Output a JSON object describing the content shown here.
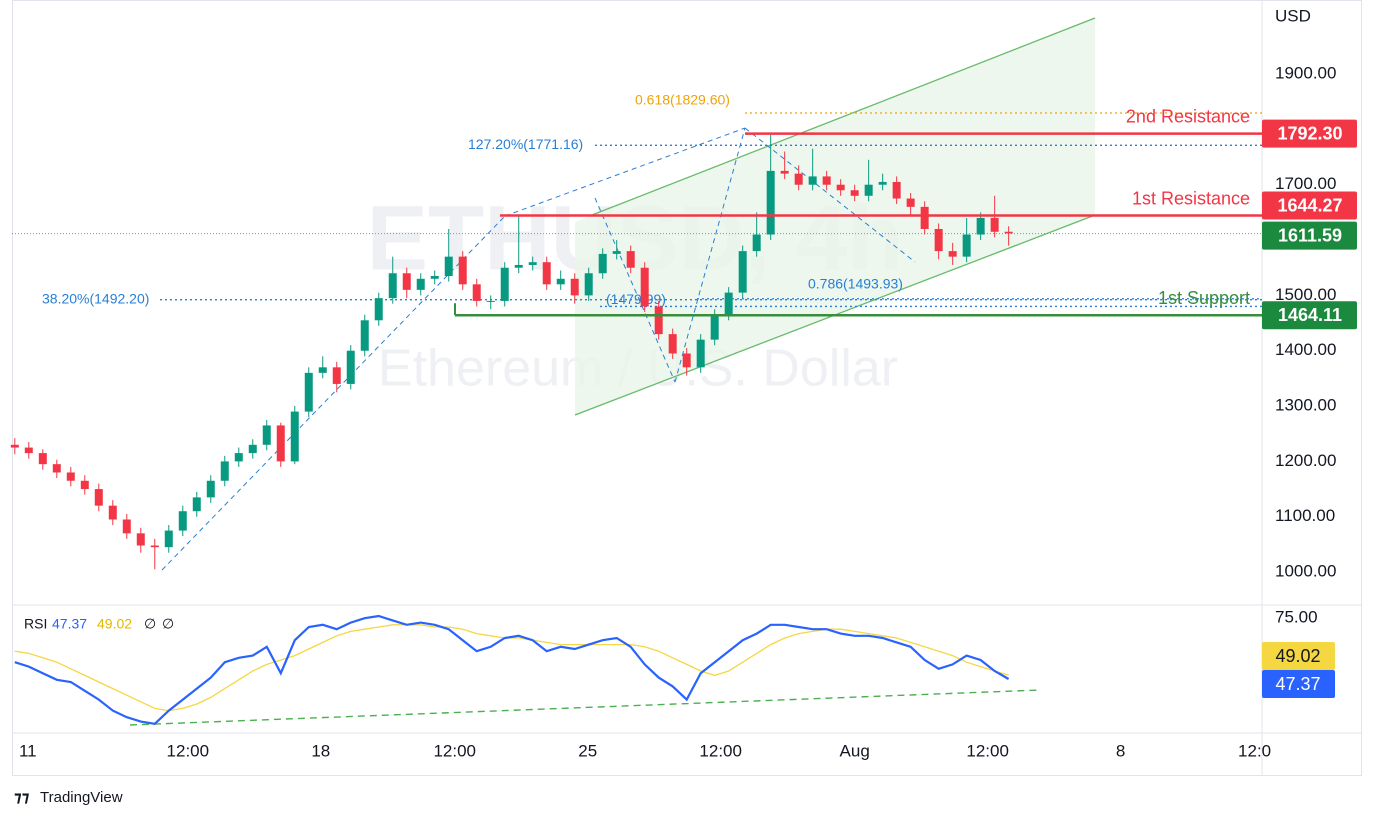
{
  "watermark_symbol": "ETHUSD, 4h",
  "watermark_description": "Ethereum / U.S. Dollar",
  "brand": "TradingView",
  "chart_data": [
    {
      "type": "candlestick",
      "y_axis_label": "USD",
      "up_color": "#089981",
      "down_color": "#f23645",
      "xlim": [
        -0.2,
        89.1
      ],
      "ylim": [
        940.5,
        2033.8
      ],
      "yticks": [
        {
          "value": 1000,
          "label": "1000.00"
        },
        {
          "value": 1100,
          "label": "1100.00"
        },
        {
          "value": 1200,
          "label": "1200.00"
        },
        {
          "value": 1300,
          "label": "1300.00"
        },
        {
          "value": 1400,
          "label": "1400.00"
        },
        {
          "value": 1500,
          "label": "1500.00"
        },
        {
          "value": 1700,
          "label": "1700.00"
        },
        {
          "value": 1900,
          "label": "1900.00"
        }
      ],
      "open": [
        1230,
        1225,
        1215,
        1195,
        1180,
        1165,
        1150,
        1120,
        1095,
        1070,
        1048,
        1045,
        1075,
        1110,
        1135,
        1165,
        1200,
        1215,
        1230,
        1265,
        1200,
        1290,
        1360,
        1370,
        1340,
        1400,
        1455,
        1495,
        1540,
        1510,
        1530,
        1535,
        1570,
        1520,
        1490,
        1490,
        1550,
        1555,
        1560,
        1520,
        1530,
        1500,
        1540,
        1575,
        1580,
        1550,
        1480,
        1430,
        1395,
        1370,
        1420,
        1465,
        1505,
        1580,
        1610,
        1725,
        1720,
        1700,
        1715,
        1700,
        1690,
        1680,
        1700,
        1705,
        1675,
        1660,
        1620,
        1580,
        1570,
        1610,
        1640,
        1615
      ],
      "high": [
        1242,
        1235,
        1222,
        1203,
        1190,
        1175,
        1160,
        1130,
        1105,
        1080,
        1060,
        1085,
        1120,
        1145,
        1175,
        1210,
        1225,
        1240,
        1275,
        1270,
        1300,
        1370,
        1390,
        1380,
        1410,
        1465,
        1505,
        1570,
        1550,
        1540,
        1545,
        1620,
        1580,
        1530,
        1500,
        1560,
        1645,
        1570,
        1570,
        1545,
        1540,
        1550,
        1585,
        1600,
        1590,
        1560,
        1490,
        1440,
        1405,
        1430,
        1475,
        1515,
        1590,
        1650,
        1790,
        1760,
        1735,
        1765,
        1725,
        1710,
        1700,
        1745,
        1720,
        1715,
        1685,
        1670,
        1630,
        1595,
        1640,
        1650,
        1680,
        1625
      ],
      "low": [
        1213,
        1205,
        1185,
        1170,
        1155,
        1140,
        1110,
        1085,
        1060,
        1035,
        1005,
        1035,
        1065,
        1100,
        1125,
        1155,
        1190,
        1205,
        1220,
        1190,
        1195,
        1280,
        1350,
        1325,
        1330,
        1390,
        1445,
        1485,
        1495,
        1500,
        1520,
        1525,
        1510,
        1480,
        1475,
        1480,
        1540,
        1545,
        1510,
        1510,
        1485,
        1490,
        1530,
        1565,
        1540,
        1470,
        1420,
        1385,
        1355,
        1360,
        1410,
        1455,
        1495,
        1570,
        1600,
        1710,
        1690,
        1690,
        1690,
        1680,
        1670,
        1670,
        1690,
        1665,
        1645,
        1610,
        1565,
        1555,
        1560,
        1600,
        1605,
        1590
      ],
      "close": [
        1225,
        1215,
        1195,
        1180,
        1165,
        1150,
        1120,
        1095,
        1070,
        1048,
        1045,
        1075,
        1110,
        1135,
        1165,
        1200,
        1215,
        1230,
        1265,
        1200,
        1290,
        1360,
        1370,
        1340,
        1400,
        1455,
        1495,
        1540,
        1510,
        1530,
        1535,
        1570,
        1520,
        1490,
        1490,
        1550,
        1555,
        1560,
        1520,
        1530,
        1500,
        1540,
        1575,
        1580,
        1550,
        1480,
        1430,
        1395,
        1370,
        1420,
        1465,
        1505,
        1580,
        1610,
        1725,
        1720,
        1700,
        1715,
        1700,
        1690,
        1680,
        1700,
        1705,
        1675,
        1660,
        1620,
        1580,
        1570,
        1610,
        1640,
        1615,
        1612
      ],
      "levels": [
        {
          "name": "2nd Resistance",
          "price": {
            "value": 1792.3,
            "label": "1792.30"
          },
          "color": "#f23645"
        },
        {
          "name": "1st Resistance",
          "price": {
            "value": 1644.27,
            "label": "1644.27"
          },
          "color": "#f23645"
        },
        {
          "name": "1st Support",
          "price": {
            "value": 1464.11,
            "label": "1464.11"
          },
          "color": "#388e3c"
        }
      ],
      "last_price": {
        "value": 1611.59,
        "label": "1611.59",
        "color": "#1b8a3e"
      },
      "fib_levels": [
        {
          "label": "0.618(1829.60)",
          "value": 1829.6,
          "color": "#f0a30a"
        },
        {
          "label": "127.20%(1771.16)",
          "value": 1771.16,
          "color": "#2a7fd4"
        },
        {
          "label": "38.20%(1492.20)",
          "value": 1492.2,
          "color": "#2a7fd4"
        },
        {
          "label": "0.786(1493.93)",
          "value": 1493.93,
          "color": "#2a7fd4"
        },
        {
          "label": "(1479.99)",
          "value": 1479.99,
          "color": "#2a7fd4"
        }
      ]
    },
    {
      "type": "line",
      "indicator": "RSI",
      "legend_extras": [
        "∅",
        "∅"
      ],
      "xlim": [
        -0.2,
        89.1
      ],
      "ylim": [
        22.8,
        81.0
      ],
      "yticks": [
        {
          "value": 75,
          "label": "75.00"
        }
      ],
      "xticks": [
        {
          "value": 0.93,
          "label": "11"
        },
        {
          "value": 12.36,
          "label": "12:00"
        },
        {
          "value": 21.86,
          "label": "18"
        },
        {
          "value": 31.43,
          "label": "12:00"
        },
        {
          "value": 40.93,
          "label": "25"
        },
        {
          "value": 50.43,
          "label": "12:00"
        },
        {
          "value": 60,
          "label": "Aug"
        },
        {
          "value": 69.5,
          "label": "12:00"
        },
        {
          "value": 79,
          "label": "8"
        },
        {
          "value": 88.57,
          "label": "12:0"
        }
      ],
      "series": [
        {
          "name": "RSI",
          "color": "#2962ff",
          "label_text_color": "#ffffff",
          "values": [
            55,
            53,
            50,
            47,
            46,
            42,
            38,
            33,
            30,
            28,
            27,
            33,
            38,
            43,
            48,
            55,
            57,
            58,
            62,
            50,
            65,
            71,
            72,
            70,
            73,
            75,
            76,
            74,
            72,
            73,
            72,
            70,
            65,
            60,
            62,
            66,
            67,
            65,
            60,
            62,
            61,
            63,
            65,
            66,
            62,
            54,
            48,
            44,
            38,
            50,
            55,
            60,
            65,
            68,
            72,
            72,
            71,
            70,
            70,
            68,
            67,
            67,
            66,
            64,
            62,
            56,
            52,
            54,
            58,
            56,
            51,
            47.37
          ]
        },
        {
          "color": "#f5d742",
          "label_text_color": "#131722",
          "values": [
            60,
            59,
            57,
            55,
            52,
            49,
            46,
            43,
            40,
            37,
            34,
            33,
            34,
            36,
            39,
            43,
            47,
            51,
            54,
            56,
            58,
            61,
            64,
            67,
            69,
            70,
            71,
            72,
            72,
            72,
            71,
            71,
            70,
            68,
            67,
            66,
            66,
            65,
            64,
            63,
            63,
            63,
            63,
            63,
            63,
            62,
            60,
            57,
            54,
            51,
            49,
            51,
            55,
            59,
            63,
            66,
            68,
            69,
            70,
            70,
            69,
            68,
            67,
            66,
            64,
            62,
            60,
            58,
            55,
            53,
            51,
            49.02
          ]
        }
      ]
    }
  ]
}
